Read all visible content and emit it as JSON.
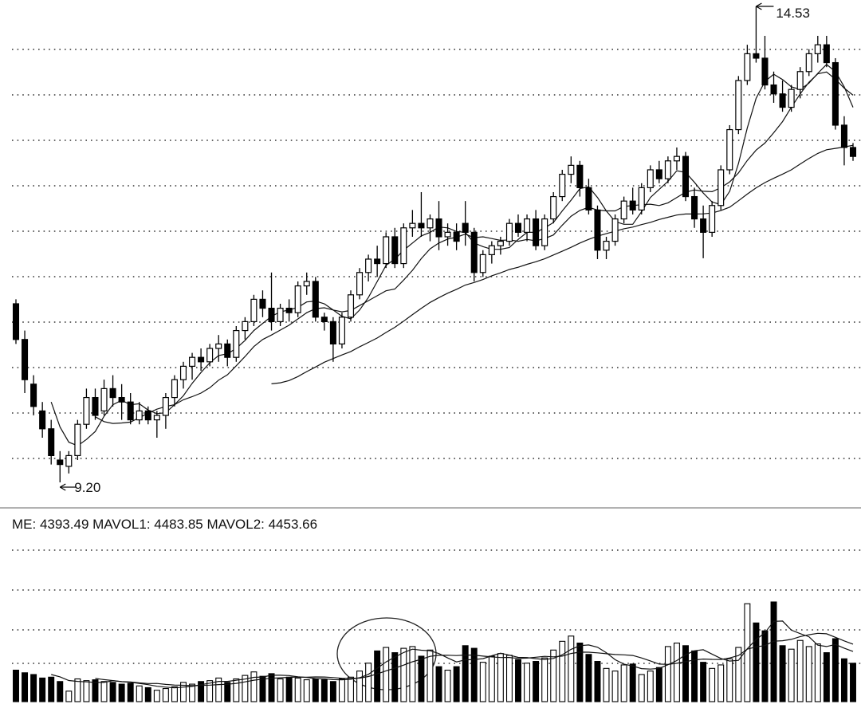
{
  "chart_data": {
    "type": "candlestick",
    "open": [
      11.2,
      10.8,
      10.3,
      10.0,
      9.8,
      9.45,
      9.38,
      9.5,
      9.85,
      10.15,
      10.0,
      10.25,
      10.15,
      10.1,
      9.9,
      10.0,
      9.9,
      9.95,
      10.15,
      10.35,
      10.5,
      10.6,
      10.55,
      10.7,
      10.75,
      10.6,
      10.9,
      11.0,
      11.25,
      11.15,
      11.0,
      11.15,
      11.1,
      11.4,
      11.45,
      11.05,
      11.0,
      10.75,
      11.05,
      11.3,
      11.55,
      11.7,
      11.65,
      11.95,
      11.65,
      12.05,
      12.1,
      12.05,
      12.15,
      11.95,
      12.0,
      12.1,
      12.0,
      11.55,
      11.75,
      11.85,
      11.9,
      12.1,
      12.0,
      12.15,
      11.85,
      12.15,
      12.4,
      12.65,
      12.75,
      12.5,
      12.25,
      11.8,
      11.9,
      12.15,
      12.35,
      12.25,
      12.5,
      12.7,
      12.6,
      12.8,
      12.85,
      12.4,
      12.15,
      12.0,
      12.3,
      12.7,
      13.15,
      13.7,
      14.0,
      13.95,
      13.65,
      13.55,
      13.4,
      13.6,
      13.8,
      14.0,
      14.1,
      13.9,
      13.2,
      12.95
    ],
    "high": [
      11.25,
      10.9,
      10.4,
      10.1,
      9.9,
      9.55,
      9.55,
      9.9,
      10.25,
      10.25,
      10.35,
      10.4,
      10.3,
      10.2,
      10.1,
      10.05,
      10.0,
      10.2,
      10.4,
      10.55,
      10.65,
      10.7,
      10.75,
      10.85,
      10.8,
      10.95,
      11.05,
      11.3,
      11.35,
      11.55,
      11.2,
      11.25,
      11.45,
      11.55,
      11.5,
      11.1,
      11.05,
      11.1,
      11.35,
      11.6,
      11.75,
      11.85,
      12.0,
      12.05,
      12.1,
      12.25,
      12.45,
      12.2,
      12.35,
      12.1,
      12.1,
      12.35,
      12.05,
      11.8,
      11.9,
      11.95,
      12.15,
      12.2,
      12.2,
      12.25,
      12.2,
      12.45,
      12.7,
      12.85,
      12.8,
      12.6,
      12.3,
      11.95,
      12.2,
      12.4,
      12.5,
      12.55,
      12.75,
      12.8,
      12.85,
      12.95,
      12.9,
      12.5,
      12.3,
      12.35,
      12.75,
      13.2,
      13.75,
      14.1,
      14.53,
      14.2,
      13.8,
      13.7,
      13.65,
      13.85,
      14.05,
      14.2,
      14.2,
      13.95,
      13.3,
      13.0
    ],
    "low": [
      10.75,
      10.2,
      9.95,
      9.7,
      9.4,
      9.2,
      9.3,
      9.45,
      9.8,
      9.9,
      9.95,
      10.05,
      9.9,
      9.85,
      9.85,
      9.85,
      9.7,
      9.8,
      10.05,
      10.25,
      10.35,
      10.45,
      10.5,
      10.55,
      10.5,
      10.55,
      10.8,
      10.95,
      11.05,
      10.9,
      10.95,
      11.0,
      11.05,
      11.3,
      11.0,
      10.9,
      10.55,
      10.7,
      11.0,
      11.25,
      11.45,
      11.5,
      11.6,
      11.6,
      11.6,
      11.95,
      11.95,
      11.9,
      11.8,
      11.85,
      11.8,
      11.85,
      11.45,
      11.5,
      11.65,
      11.75,
      11.85,
      11.95,
      11.9,
      11.8,
      11.8,
      12.1,
      12.35,
      12.55,
      12.4,
      12.2,
      11.7,
      11.7,
      11.85,
      12.1,
      12.2,
      12.2,
      12.45,
      12.55,
      12.55,
      12.7,
      12.35,
      12.05,
      11.71,
      11.95,
      12.25,
      12.65,
      13.1,
      13.65,
      13.9,
      13.6,
      13.45,
      13.35,
      13.35,
      13.5,
      13.75,
      13.9,
      13.85,
      13.15,
      12.75,
      12.8
    ],
    "close": [
      10.8,
      10.35,
      10.05,
      9.8,
      9.5,
      9.4,
      9.5,
      9.85,
      10.15,
      9.95,
      10.25,
      10.15,
      10.1,
      9.9,
      10.0,
      9.9,
      9.95,
      10.15,
      10.35,
      10.5,
      10.6,
      10.55,
      10.7,
      10.75,
      10.6,
      10.9,
      11.0,
      11.25,
      11.15,
      11.0,
      11.15,
      11.1,
      11.4,
      11.45,
      11.05,
      11.0,
      10.75,
      11.05,
      11.3,
      11.55,
      11.7,
      11.65,
      11.95,
      11.65,
      12.05,
      12.1,
      12.05,
      12.15,
      11.95,
      12.0,
      11.9,
      12.0,
      11.55,
      11.75,
      11.85,
      11.9,
      12.1,
      12.0,
      12.15,
      11.85,
      12.15,
      12.4,
      12.65,
      12.75,
      12.5,
      12.25,
      11.8,
      11.9,
      12.15,
      12.35,
      12.25,
      12.5,
      12.7,
      12.6,
      12.8,
      12.85,
      12.4,
      12.15,
      12.0,
      12.3,
      12.7,
      13.15,
      13.7,
      14.0,
      13.95,
      13.65,
      13.55,
      13.4,
      13.6,
      13.8,
      14.0,
      14.1,
      13.9,
      13.2,
      12.95,
      12.85
    ],
    "volume": [
      3600,
      3300,
      3100,
      2700,
      2800,
      2300,
      1200,
      2600,
      2400,
      2500,
      2300,
      2200,
      2000,
      2100,
      1800,
      1600,
      1300,
      1500,
      1700,
      2200,
      2000,
      2300,
      2400,
      2700,
      2200,
      2600,
      3000,
      3400,
      2900,
      3200,
      2600,
      2800,
      2700,
      2500,
      2600,
      2500,
      2300,
      2600,
      2800,
      3500,
      4400,
      5800,
      6200,
      5600,
      6100,
      6300,
      5200,
      5900,
      4000,
      3600,
      4000,
      6400,
      6100,
      4500,
      5200,
      5500,
      5300,
      4800,
      4400,
      4600,
      5000,
      5900,
      6900,
      7500,
      6700,
      5400,
      4600,
      3800,
      3500,
      4200,
      4300,
      3100,
      3500,
      3900,
      6300,
      6700,
      6400,
      5800,
      4500,
      3800,
      4200,
      4900,
      6200,
      11200,
      9000,
      8100,
      11400,
      6400,
      6000,
      7000,
      6300,
      6600,
      5600,
      7200,
      4900,
      4393.49
    ],
    "indicator_label": "ME: 4393.49 MAVOL1: 4483.85 MAVOL2: 4453.66",
    "annotations": [
      "14.53",
      "9.20"
    ],
    "up_color": "#ffffff",
    "down_color": "#000000"
  }
}
